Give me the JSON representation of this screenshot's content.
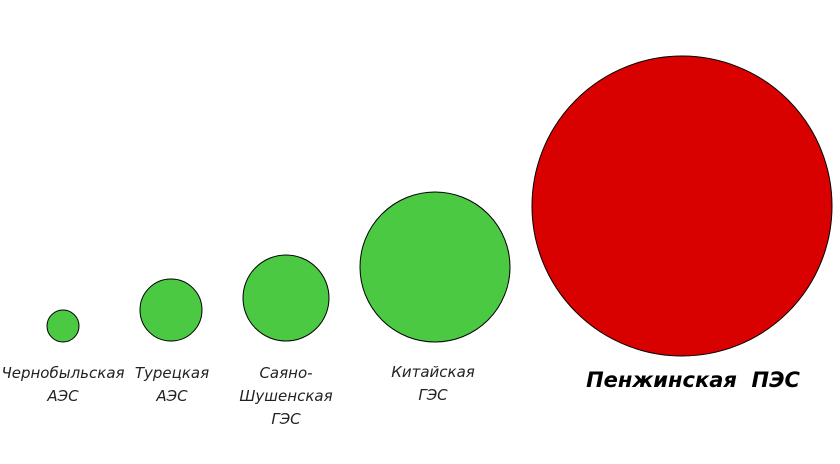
{
  "nodes": [
    {
      "label": [
        "Чернобыльская",
        "АЭС"
      ]
    },
    {
      "label": [
        "Турецкая",
        "АЭС"
      ]
    },
    {
      "label": [
        "Саяно-",
        "Шушенская",
        "ГЭС"
      ]
    },
    {
      "label": [
        "Китайская",
        "ГЭС"
      ]
    },
    {
      "label": [
        "Пенжинская  ПЭС"
      ]
    }
  ]
}
